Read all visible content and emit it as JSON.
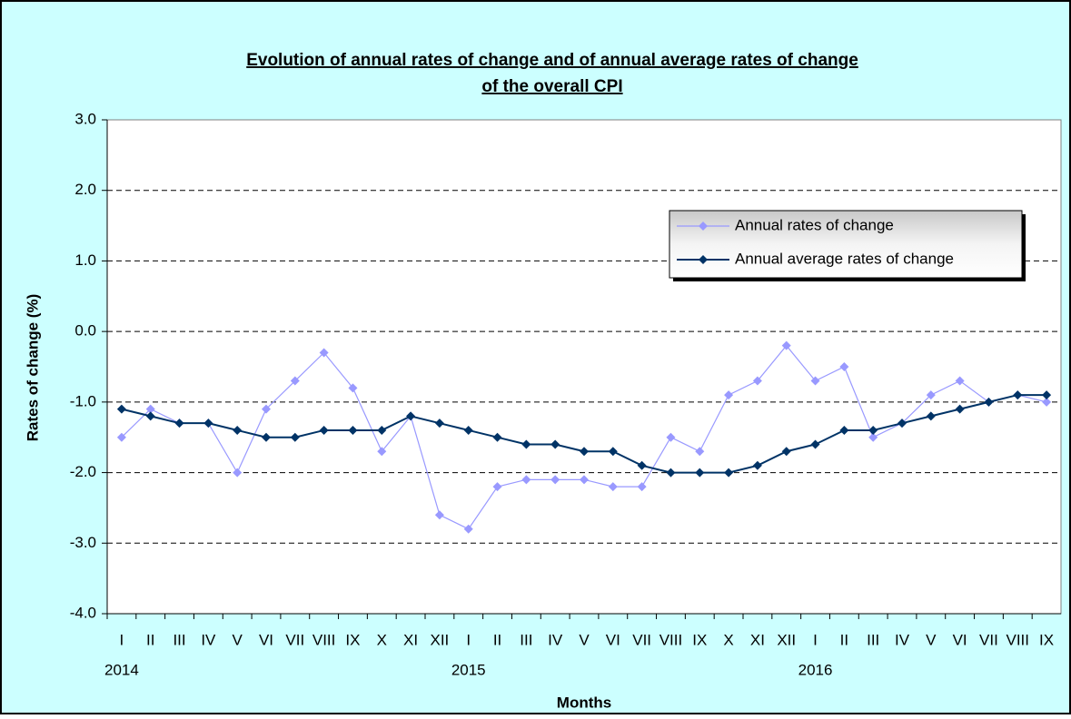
{
  "chart_data": {
    "type": "line",
    "title": [
      "Evolution of annual rates of change and of annual average rates of change",
      "of  the overall CPI"
    ],
    "x_label": "Months",
    "y_label": "Rates of change (%)",
    "categories": [
      "I",
      "II",
      "III",
      "IV",
      "V",
      "VI",
      "VII",
      "VIII",
      "IX",
      "X",
      "XI",
      "XII",
      "I",
      "II",
      "III",
      "IV",
      "V",
      "VI",
      "VII",
      "VIII",
      "IX",
      "X",
      "XI",
      "XII",
      "I",
      "II",
      "III",
      "IV",
      "V",
      "VI",
      "VII",
      "VIII",
      "IX"
    ],
    "years": [
      "2014",
      "2015",
      "2016"
    ],
    "series": [
      {
        "name": "Annual rates of change",
        "color": "#9999ff",
        "values": [
          -1.5,
          -1.1,
          -1.3,
          -1.3,
          -2.0,
          -1.1,
          -0.7,
          -0.3,
          -0.8,
          -1.7,
          -1.2,
          -2.6,
          -2.8,
          -2.2,
          -2.1,
          -2.1,
          -2.1,
          -2.2,
          -2.2,
          -1.5,
          -1.7,
          -0.9,
          -0.7,
          -0.2,
          -0.7,
          -0.5,
          -1.5,
          -1.3,
          -0.9,
          -0.7,
          -1.0,
          -0.9,
          -1.0
        ]
      },
      {
        "name": "Annual average rates of change",
        "color": "#003366",
        "values": [
          -1.1,
          -1.2,
          -1.3,
          -1.3,
          -1.4,
          -1.5,
          -1.5,
          -1.4,
          -1.4,
          -1.4,
          -1.2,
          -1.3,
          -1.4,
          -1.5,
          -1.6,
          -1.6,
          -1.7,
          -1.7,
          -1.9,
          -2.0,
          -2.0,
          -2.0,
          -1.9,
          -1.7,
          -1.6,
          -1.4,
          -1.4,
          -1.3,
          -1.2,
          -1.1,
          -1.0,
          -0.9,
          -0.9
        ]
      }
    ],
    "ylim": [
      -4,
      3
    ],
    "yticks": [
      {
        "value": 3,
        "label": "3.0"
      },
      {
        "value": 2,
        "label": "2.0"
      },
      {
        "value": 1,
        "label": "1.0"
      },
      {
        "value": 0,
        "label": "0.0"
      },
      {
        "value": -1,
        "label": "-1.0"
      },
      {
        "value": -2,
        "label": "-2.0"
      },
      {
        "value": -3,
        "label": "-3.0"
      },
      {
        "value": -4,
        "label": "-4.0"
      }
    ],
    "grid": true,
    "legend": "upper right"
  }
}
